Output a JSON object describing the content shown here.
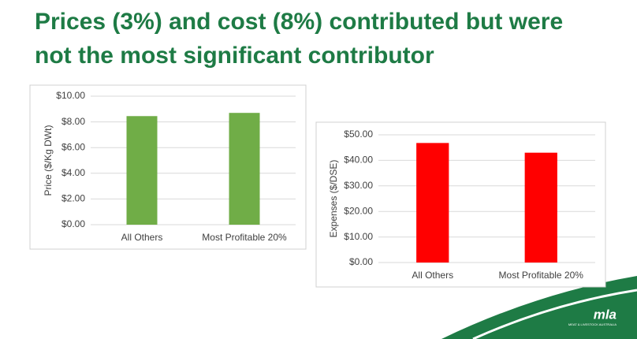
{
  "heading": "Prices (3%) and cost (8%) contributed but were not the most significant contributor",
  "logo": {
    "name": "mla",
    "tagline": "MEAT & LIVESTOCK AUSTRALIA"
  },
  "chart_data": [
    {
      "type": "bar",
      "y_label": "Price ($/Kg DWt)",
      "categories": [
        "All Others",
        "Most Profitable 20%"
      ],
      "values": [
        8.45,
        8.7
      ],
      "color": "#70ad47",
      "ylim": [
        0,
        10
      ],
      "yticks": [
        {
          "value": 0,
          "label": "$0.00"
        },
        {
          "value": 2,
          "label": "$2.00"
        },
        {
          "value": 4,
          "label": "$4.00"
        },
        {
          "value": 6,
          "label": "$6.00"
        },
        {
          "value": 8,
          "label": "$8.00"
        },
        {
          "value": 10,
          "label": "$10.00"
        }
      ],
      "grid": true
    },
    {
      "type": "bar",
      "y_label": "Expenses ($/DSE)",
      "categories": [
        "All Others",
        "Most Profitable 20%"
      ],
      "values": [
        46.8,
        43.0
      ],
      "color": "#ff0000",
      "ylim": [
        0,
        50
      ],
      "yticks": [
        {
          "value": 0,
          "label": "$0.00"
        },
        {
          "value": 10,
          "label": "$10.00"
        },
        {
          "value": 20,
          "label": "$20.00"
        },
        {
          "value": 30,
          "label": "$30.00"
        },
        {
          "value": 40,
          "label": "$40.00"
        },
        {
          "value": 50,
          "label": "$50.00"
        }
      ],
      "grid": true
    }
  ]
}
